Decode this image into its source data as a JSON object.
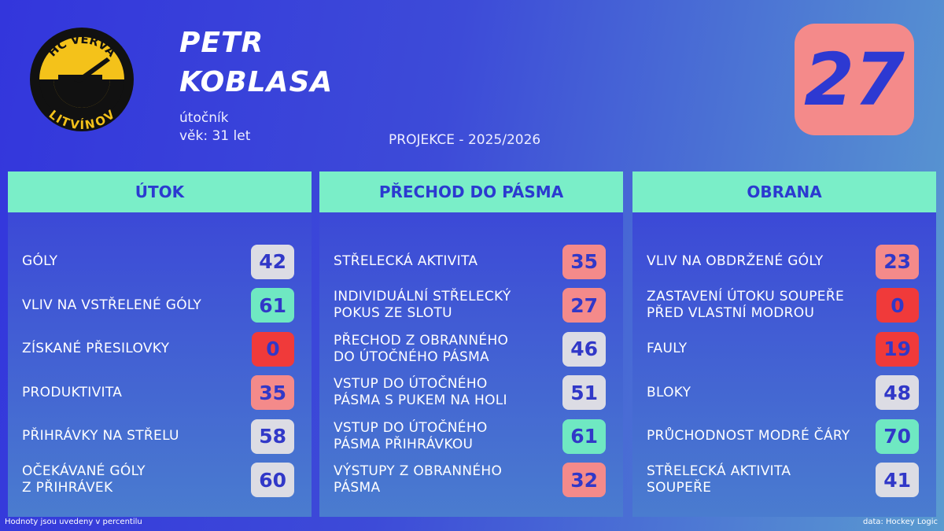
{
  "header": {
    "logo_top": "HC VERVA",
    "logo_bottom": "LITVÍNOV",
    "name": [
      "PETR",
      "KOBLASA"
    ],
    "position": "útočník",
    "age": "věk: 31 let",
    "projection": "PROJEKCE - 2025/2026",
    "number": "27"
  },
  "sections": [
    {
      "title": "ÚTOK",
      "items": [
        {
          "label": [
            "GÓLY"
          ],
          "value": 42,
          "color": "#dcdce4"
        },
        {
          "label": [
            "VLIV NA VSTŘELENÉ GÓLY"
          ],
          "value": 61,
          "color": "#6fe8c2"
        },
        {
          "label": [
            "ZÍSKANÉ PŘESILOVKY"
          ],
          "value": 0,
          "color": "#f03a3a"
        },
        {
          "label": [
            "PRODUKTIVITA"
          ],
          "value": 35,
          "color": "#f48a8a"
        },
        {
          "label": [
            "PŘIHRÁVKY NA STŘELU"
          ],
          "value": 58,
          "color": "#dcdce4"
        },
        {
          "label": [
            "OČEKÁVANÉ GÓLY",
            "Z PŘIHRÁVEK"
          ],
          "value": 60,
          "color": "#dcdce4"
        }
      ]
    },
    {
      "title": "PŘECHOD DO PÁSMA",
      "items": [
        {
          "label": [
            "STŘELECKÁ AKTIVITA"
          ],
          "value": 35,
          "color": "#f48a8a"
        },
        {
          "label": [
            "INDIVIDUÁLNÍ STŘELECKÝ",
            "POKUS ZE SLOTU"
          ],
          "value": 27,
          "color": "#f48a8a"
        },
        {
          "label": [
            "PŘECHOD Z OBRANNÉHO",
            "DO ÚTOČNÉHO PÁSMA"
          ],
          "value": 46,
          "color": "#dcdce4"
        },
        {
          "label": [
            "VSTUP DO ÚTOČNÉHO",
            "PÁSMA S PUKEM NA HOLI"
          ],
          "value": 51,
          "color": "#dcdce4"
        },
        {
          "label": [
            "VSTUP DO ÚTOČNÉHO",
            "PÁSMA PŘIHRÁVKOU"
          ],
          "value": 61,
          "color": "#6fe8c2"
        },
        {
          "label": [
            "VÝSTUPY Z OBRANNÉHO",
            "PÁSMA"
          ],
          "value": 32,
          "color": "#f48a8a"
        }
      ]
    },
    {
      "title": "OBRANA",
      "items": [
        {
          "label": [
            "VLIV NA OBDRŽENÉ GÓLY"
          ],
          "value": 23,
          "color": "#f48a8a"
        },
        {
          "label": [
            "ZASTAVENÍ ÚTOKU SOUPEŘE",
            "PŘED VLASTNÍ MODROU"
          ],
          "value": 0,
          "color": "#f03a3a"
        },
        {
          "label": [
            "FAULY"
          ],
          "value": 19,
          "color": "#f03a3a"
        },
        {
          "label": [
            "BLOKY"
          ],
          "value": 48,
          "color": "#dcdce4"
        },
        {
          "label": [
            "PRŮCHODNOST MODRÉ ČÁRY"
          ],
          "value": 70,
          "color": "#6fe8c2"
        },
        {
          "label": [
            "STŘELECKÁ AKTIVITA",
            "SOUPEŘE"
          ],
          "value": 41,
          "color": "#dcdce4"
        }
      ]
    }
  ],
  "footer": {
    "note": "Hodnoty jsou uvedeny v percentilu",
    "source": "data: Hockey Logic"
  }
}
